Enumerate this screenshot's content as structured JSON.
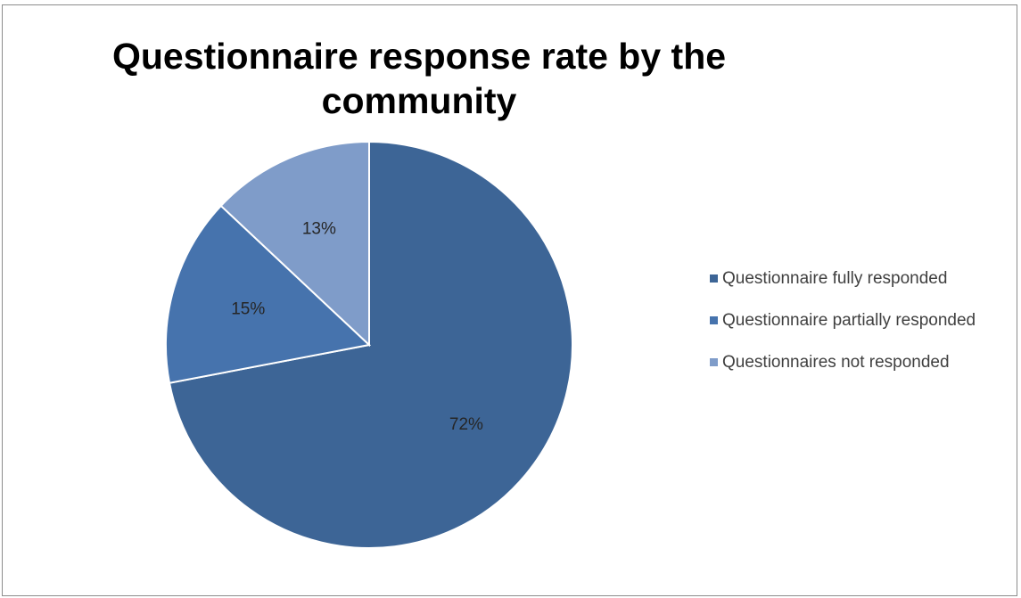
{
  "caption_fragment": "",
  "chart_data": {
    "type": "pie",
    "title": "Questionnaire response rate by the community",
    "title_lines": [
      "Questionnaire response rate by the",
      "community"
    ],
    "categories": [
      "Questionnaire fully responded",
      "Questionnaire partially responded",
      "Questionnaires not responded"
    ],
    "values": [
      72,
      15,
      13
    ],
    "data_labels": [
      "72%",
      "15%",
      "13%"
    ],
    "colors": [
      "#3d6596",
      "#4673ad",
      "#7f9cc9"
    ],
    "legend_position": "right",
    "start_angle": "12 o'clock, clockwise"
  }
}
